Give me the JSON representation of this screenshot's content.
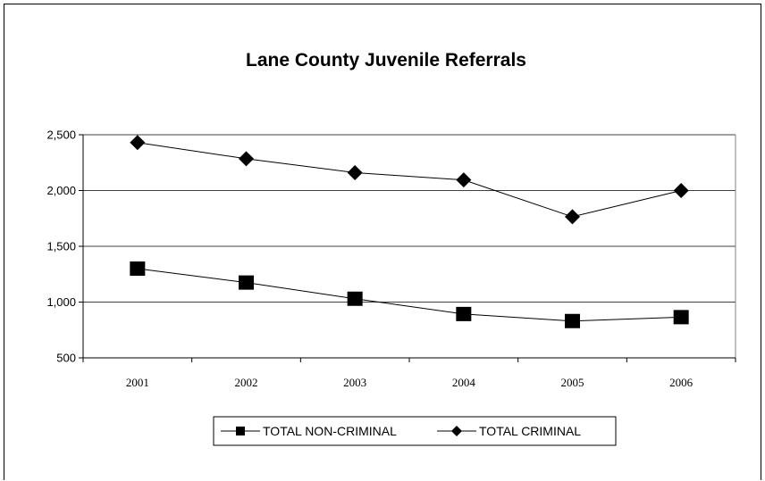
{
  "chart_data": {
    "type": "line",
    "title": "Lane County Juvenile Referrals",
    "xlabel": "",
    "ylabel": "",
    "categories": [
      "2001",
      "2002",
      "2003",
      "2004",
      "2005",
      "2006"
    ],
    "ylim": [
      500,
      2500
    ],
    "yticks": [
      500,
      1000,
      1500,
      2000,
      2500
    ],
    "ytick_labels": [
      "500",
      "1,000",
      "1,500",
      "2,000",
      "2,500"
    ],
    "grid": true,
    "legend_position": "bottom",
    "series": [
      {
        "name": "TOTAL NON-CRIMINAL",
        "marker": "square",
        "color": "#000000",
        "values": [
          1300,
          1175,
          1030,
          893,
          830,
          865
        ]
      },
      {
        "name": "TOTAL CRIMINAL",
        "marker": "diamond",
        "color": "#000000",
        "values": [
          2430,
          2285,
          2160,
          2095,
          1765,
          2000
        ]
      }
    ]
  }
}
